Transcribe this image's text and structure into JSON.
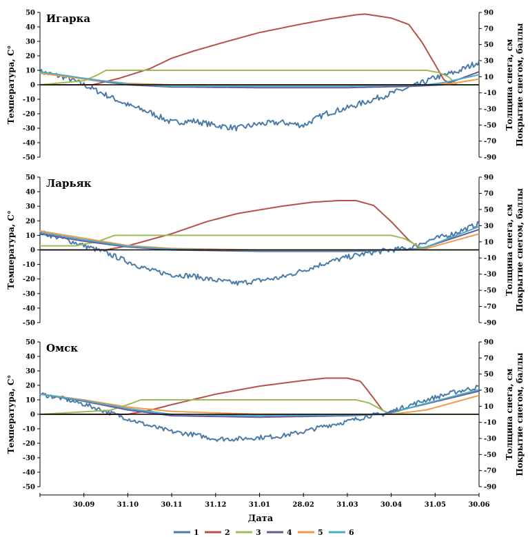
{
  "chart_data": [
    {
      "type": "line",
      "title": "Игарка",
      "ylabel": "Температура, С°",
      "ylabel_right_1": "Толщина снега, см",
      "ylabel_right_2": "Покрытие снегом, баллы",
      "ylim": [
        -50,
        50
      ],
      "ylim_right": [
        -90,
        90
      ],
      "left_ticks": [
        "50",
        "40",
        "30",
        "20",
        "10",
        "0",
        "-10",
        "-20",
        "-30",
        "-40",
        "-50"
      ],
      "right_ticks": [
        "90",
        "70",
        "50",
        "30",
        "10",
        "-10",
        "-30",
        "-50",
        "-70",
        "-90"
      ],
      "series": [
        {
          "id": "1",
          "color": "#4a7aa7",
          "axis": "left",
          "noise": 2.0,
          "points": [
            [
              0,
              9
            ],
            [
              0.06,
              5
            ],
            [
              0.1,
              0
            ],
            [
              0.15,
              -7
            ],
            [
              0.2,
              -14
            ],
            [
              0.25,
              -19
            ],
            [
              0.3,
              -26
            ],
            [
              0.35,
              -25
            ],
            [
              0.4,
              -28
            ],
            [
              0.45,
              -30
            ],
            [
              0.5,
              -27
            ],
            [
              0.55,
              -26
            ],
            [
              0.6,
              -28
            ],
            [
              0.65,
              -20
            ],
            [
              0.7,
              -16
            ],
            [
              0.75,
              -11
            ],
            [
              0.8,
              -6
            ],
            [
              0.86,
              0
            ],
            [
              0.9,
              5
            ],
            [
              0.95,
              9
            ],
            [
              1,
              16
            ]
          ]
        },
        {
          "id": "2",
          "color": "#b5504b",
          "axis": "right",
          "noise": 0,
          "points": [
            [
              0,
              0
            ],
            [
              0.12,
              0
            ],
            [
              0.18,
              8
            ],
            [
              0.25,
              20
            ],
            [
              0.3,
              33
            ],
            [
              0.35,
              42
            ],
            [
              0.42,
              53
            ],
            [
              0.5,
              65
            ],
            [
              0.6,
              76
            ],
            [
              0.66,
              82
            ],
            [
              0.72,
              87
            ],
            [
              0.74,
              88
            ],
            [
              0.8,
              83
            ],
            [
              0.84,
              75
            ],
            [
              0.87,
              53
            ],
            [
              0.9,
              25
            ],
            [
              0.92,
              6
            ],
            [
              0.94,
              0
            ],
            [
              1,
              0
            ]
          ]
        },
        {
          "id": "3",
          "color": "#9bbb59",
          "axis": "right",
          "noise": 0,
          "points": [
            [
              0,
              0
            ],
            [
              0.1,
              5
            ],
            [
              0.13,
              12
            ],
            [
              0.15,
              18
            ],
            [
              0.88,
              18
            ],
            [
              0.91,
              15
            ],
            [
              0.93,
              10
            ],
            [
              0.95,
              0
            ],
            [
              1,
              0
            ]
          ]
        },
        {
          "id": "4",
          "color": "#6b5894",
          "axis": "left",
          "noise": 0,
          "points": [
            [
              0,
              9
            ],
            [
              0.1,
              4
            ],
            [
              0.2,
              0
            ],
            [
              0.3,
              -1.5
            ],
            [
              0.5,
              -2
            ],
            [
              0.7,
              -2
            ],
            [
              0.85,
              -1
            ],
            [
              0.92,
              0
            ],
            [
              1,
              9
            ]
          ]
        },
        {
          "id": "5",
          "color": "#f39a45",
          "axis": "left",
          "noise": 0,
          "points": [
            [
              0,
              8
            ],
            [
              0.1,
              4
            ],
            [
              0.2,
              1
            ],
            [
              0.3,
              0
            ],
            [
              0.5,
              0
            ],
            [
              0.7,
              0
            ],
            [
              0.9,
              0
            ],
            [
              0.94,
              1
            ],
            [
              1,
              4
            ]
          ]
        },
        {
          "id": "6",
          "color": "#4bacc6",
          "axis": "left",
          "noise": 0,
          "points": [
            [
              0,
              9
            ],
            [
              0.1,
              4.5
            ],
            [
              0.2,
              0.5
            ],
            [
              0.3,
              -1
            ],
            [
              0.5,
              -1
            ],
            [
              0.7,
              -1
            ],
            [
              0.88,
              0
            ],
            [
              0.92,
              1.5
            ],
            [
              1,
              7
            ]
          ]
        }
      ]
    },
    {
      "type": "line",
      "title": "Ларьяк",
      "ylabel": "Температура, С°",
      "ylabel_right_1": "Толщина снега, см",
      "ylabel_right_2": "Покрытие снегом, баллы",
      "ylim": [
        -50,
        50
      ],
      "ylim_right": [
        -90,
        90
      ],
      "left_ticks": [
        "50",
        "40",
        "30",
        "20",
        "10",
        "0",
        "-10",
        "-20",
        "-30",
        "-40",
        "-50"
      ],
      "right_ticks": [
        "90",
        "70",
        "50",
        "30",
        "10",
        "-10",
        "-30",
        "-50",
        "-70",
        "-90"
      ],
      "series": [
        {
          "id": "1",
          "color": "#4a7aa7",
          "axis": "left",
          "noise": 1.8,
          "points": [
            [
              0,
              12
            ],
            [
              0.05,
              8
            ],
            [
              0.1,
              3
            ],
            [
              0.15,
              -2
            ],
            [
              0.2,
              -8
            ],
            [
              0.25,
              -14
            ],
            [
              0.3,
              -17
            ],
            [
              0.35,
              -18
            ],
            [
              0.4,
              -21
            ],
            [
              0.45,
              -23
            ],
            [
              0.5,
              -21
            ],
            [
              0.55,
              -19
            ],
            [
              0.6,
              -14
            ],
            [
              0.65,
              -9
            ],
            [
              0.7,
              -5
            ],
            [
              0.75,
              -2
            ],
            [
              0.8,
              0
            ],
            [
              0.84,
              1
            ],
            [
              0.88,
              6
            ],
            [
              0.94,
              11
            ],
            [
              1,
              18
            ]
          ]
        },
        {
          "id": "2",
          "color": "#b5504b",
          "axis": "right",
          "noise": 0,
          "points": [
            [
              0,
              0
            ],
            [
              0.15,
              0
            ],
            [
              0.2,
              5
            ],
            [
              0.3,
              20
            ],
            [
              0.38,
              35
            ],
            [
              0.45,
              45
            ],
            [
              0.55,
              54
            ],
            [
              0.62,
              59
            ],
            [
              0.68,
              61
            ],
            [
              0.72,
              61
            ],
            [
              0.76,
              55
            ],
            [
              0.8,
              35
            ],
            [
              0.84,
              12
            ],
            [
              0.87,
              0
            ],
            [
              1,
              0
            ]
          ]
        },
        {
          "id": "3",
          "color": "#9bbb59",
          "axis": "right",
          "noise": 0,
          "points": [
            [
              0,
              5
            ],
            [
              0.08,
              5
            ],
            [
              0.13,
              10
            ],
            [
              0.17,
              18
            ],
            [
              0.8,
              18
            ],
            [
              0.83,
              14
            ],
            [
              0.86,
              5
            ],
            [
              0.88,
              0
            ],
            [
              1,
              0
            ]
          ]
        },
        {
          "id": "4",
          "color": "#6b5894",
          "axis": "left",
          "noise": 0,
          "points": [
            [
              0,
              11
            ],
            [
              0.1,
              6
            ],
            [
              0.2,
              2
            ],
            [
              0.3,
              0
            ],
            [
              0.5,
              -1
            ],
            [
              0.7,
              -1
            ],
            [
              0.82,
              0
            ],
            [
              0.87,
              1
            ],
            [
              1,
              14
            ]
          ]
        },
        {
          "id": "5",
          "color": "#f39a45",
          "axis": "left",
          "noise": 0,
          "points": [
            [
              0,
              13
            ],
            [
              0.1,
              8
            ],
            [
              0.2,
              3
            ],
            [
              0.3,
              1
            ],
            [
              0.5,
              0
            ],
            [
              0.7,
              0
            ],
            [
              0.85,
              0
            ],
            [
              0.88,
              1
            ],
            [
              1,
              11
            ]
          ]
        },
        {
          "id": "6",
          "color": "#4bacc6",
          "axis": "left",
          "noise": 0,
          "points": [
            [
              0,
              12
            ],
            [
              0.1,
              7
            ],
            [
              0.2,
              2.5
            ],
            [
              0.3,
              0.5
            ],
            [
              0.5,
              -0.5
            ],
            [
              0.7,
              -0.5
            ],
            [
              0.84,
              0
            ],
            [
              0.88,
              2
            ],
            [
              1,
              16
            ]
          ]
        }
      ]
    },
    {
      "type": "line",
      "title": "Омск",
      "ylabel": "Температура, С°",
      "ylabel_right_1": "Толщина снега, см",
      "ylabel_right_2": "Покрытие снегом, баллы",
      "ylim": [
        -50,
        50
      ],
      "ylim_right": [
        -90,
        90
      ],
      "left_ticks": [
        "50",
        "40",
        "30",
        "20",
        "10",
        "0",
        "-10",
        "-20",
        "-30",
        "-40",
        "-50"
      ],
      "right_ticks": [
        "90",
        "70",
        "50",
        "30",
        "10",
        "-10",
        "-30",
        "-50",
        "-70",
        "-90"
      ],
      "series": [
        {
          "id": "1",
          "color": "#4a7aa7",
          "axis": "left",
          "noise": 1.6,
          "points": [
            [
              0,
              14
            ],
            [
              0.05,
              11
            ],
            [
              0.1,
              7
            ],
            [
              0.15,
              2
            ],
            [
              0.2,
              -3
            ],
            [
              0.25,
              -8
            ],
            [
              0.3,
              -12
            ],
            [
              0.35,
              -14
            ],
            [
              0.4,
              -17
            ],
            [
              0.45,
              -17
            ],
            [
              0.5,
              -16
            ],
            [
              0.55,
              -15
            ],
            [
              0.6,
              -12
            ],
            [
              0.65,
              -8
            ],
            [
              0.7,
              -5
            ],
            [
              0.75,
              -1
            ],
            [
              0.78,
              0
            ],
            [
              0.82,
              4
            ],
            [
              0.88,
              10
            ],
            [
              0.94,
              15
            ],
            [
              1,
              19
            ]
          ]
        },
        {
          "id": "2",
          "color": "#b5504b",
          "axis": "right",
          "noise": 0,
          "points": [
            [
              0,
              0
            ],
            [
              0.2,
              0
            ],
            [
              0.25,
              5
            ],
            [
              0.3,
              12
            ],
            [
              0.4,
              25
            ],
            [
              0.5,
              35
            ],
            [
              0.6,
              42
            ],
            [
              0.65,
              45
            ],
            [
              0.7,
              45
            ],
            [
              0.73,
              41
            ],
            [
              0.76,
              20
            ],
            [
              0.78,
              5
            ],
            [
              0.8,
              0
            ],
            [
              1,
              0
            ]
          ]
        },
        {
          "id": "3",
          "color": "#9bbb59",
          "axis": "right",
          "noise": 0,
          "points": [
            [
              0,
              0
            ],
            [
              0.16,
              5
            ],
            [
              0.2,
              12
            ],
            [
              0.23,
              18
            ],
            [
              0.72,
              18
            ],
            [
              0.75,
              14
            ],
            [
              0.78,
              5
            ],
            [
              0.8,
              0
            ],
            [
              1,
              0
            ]
          ]
        },
        {
          "id": "4",
          "color": "#6b5894",
          "axis": "left",
          "noise": 0,
          "points": [
            [
              0,
              14
            ],
            [
              0.1,
              9
            ],
            [
              0.2,
              3
            ],
            [
              0.3,
              -1
            ],
            [
              0.5,
              -2
            ],
            [
              0.7,
              -1
            ],
            [
              0.78,
              0
            ],
            [
              0.85,
              5
            ],
            [
              1,
              16
            ]
          ]
        },
        {
          "id": "5",
          "color": "#f39a45",
          "axis": "left",
          "noise": 0,
          "points": [
            [
              0,
              14
            ],
            [
              0.1,
              10
            ],
            [
              0.2,
              5
            ],
            [
              0.3,
              2
            ],
            [
              0.5,
              0
            ],
            [
              0.7,
              0
            ],
            [
              0.8,
              0
            ],
            [
              0.88,
              3
            ],
            [
              1,
              13
            ]
          ]
        },
        {
          "id": "6",
          "color": "#4bacc6",
          "axis": "left",
          "noise": 0,
          "points": [
            [
              0,
              14
            ],
            [
              0.1,
              9.5
            ],
            [
              0.2,
              4
            ],
            [
              0.3,
              0
            ],
            [
              0.5,
              -1
            ],
            [
              0.7,
              -0.5
            ],
            [
              0.79,
              0
            ],
            [
              0.86,
              6
            ],
            [
              1,
              17
            ]
          ]
        }
      ]
    }
  ],
  "x_axis": {
    "label": "Дата",
    "ticks": [
      "30.09",
      "31.10",
      "30.11",
      "31.12",
      "31.01",
      "28.02",
      "31.03",
      "30.04",
      "31.05",
      "30.06"
    ]
  },
  "legend": [
    {
      "label": "1",
      "color": "#4a7aa7"
    },
    {
      "label": "2",
      "color": "#b5504b"
    },
    {
      "label": "3",
      "color": "#9bbb59"
    },
    {
      "label": "4",
      "color": "#6b5894"
    },
    {
      "label": "5",
      "color": "#f39a45"
    },
    {
      "label": "6",
      "color": "#4bacc6"
    }
  ]
}
